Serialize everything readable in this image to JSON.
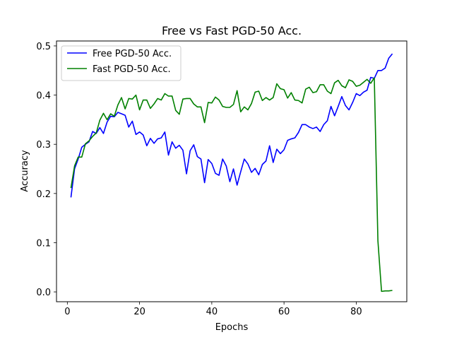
{
  "chart_data": {
    "type": "line",
    "title": "Free vs Fast PGD-50 Acc.",
    "xlabel": "Epochs",
    "ylabel": "Accuracy",
    "xlim": [
      -3,
      94
    ],
    "ylim": [
      -0.02,
      0.51
    ],
    "xticks": [
      0,
      20,
      40,
      60,
      80
    ],
    "yticks": [
      0.0,
      0.1,
      0.2,
      0.3,
      0.4,
      0.5
    ],
    "xtick_labels": [
      "0",
      "20",
      "40",
      "60",
      "80"
    ],
    "ytick_labels": [
      "0.0",
      "0.1",
      "0.2",
      "0.3",
      "0.4",
      "0.5"
    ],
    "legend_position": "top-left",
    "grid": false,
    "x": [
      1,
      2,
      3,
      4,
      5,
      6,
      7,
      8,
      9,
      10,
      11,
      12,
      13,
      14,
      15,
      16,
      17,
      18,
      19,
      20,
      21,
      22,
      23,
      24,
      25,
      26,
      27,
      28,
      29,
      30,
      31,
      32,
      33,
      34,
      35,
      36,
      37,
      38,
      39,
      40,
      41,
      42,
      43,
      44,
      45,
      46,
      47,
      48,
      49,
      50,
      51,
      52,
      53,
      54,
      55,
      56,
      57,
      58,
      59,
      60,
      61,
      62,
      63,
      64,
      65,
      66,
      67,
      68,
      69,
      70,
      71,
      72,
      73,
      74,
      75,
      76,
      77,
      78,
      79,
      80,
      81,
      82,
      83,
      84,
      85,
      86,
      87,
      88,
      89,
      90
    ],
    "series": [
      {
        "name": "Free PGD-50 Acc.",
        "color": "#0000ff",
        "values": [
          0.192,
          0.25,
          0.27,
          0.294,
          0.3,
          0.305,
          0.326,
          0.322,
          0.334,
          0.322,
          0.345,
          0.357,
          0.356,
          0.365,
          0.362,
          0.359,
          0.335,
          0.347,
          0.32,
          0.325,
          0.319,
          0.297,
          0.312,
          0.302,
          0.311,
          0.313,
          0.325,
          0.278,
          0.305,
          0.292,
          0.298,
          0.288,
          0.24,
          0.287,
          0.299,
          0.275,
          0.27,
          0.222,
          0.269,
          0.261,
          0.241,
          0.237,
          0.27,
          0.256,
          0.224,
          0.25,
          0.217,
          0.244,
          0.27,
          0.26,
          0.243,
          0.251,
          0.238,
          0.259,
          0.266,
          0.297,
          0.263,
          0.29,
          0.281,
          0.289,
          0.308,
          0.311,
          0.313,
          0.324,
          0.34,
          0.34,
          0.335,
          0.332,
          0.335,
          0.326,
          0.34,
          0.348,
          0.377,
          0.358,
          0.377,
          0.397,
          0.379,
          0.37,
          0.385,
          0.403,
          0.399,
          0.406,
          0.41,
          0.436,
          0.434,
          0.45,
          0.45,
          0.455,
          0.475,
          0.484
        ]
      },
      {
        "name": "Fast PGD-50 Acc.",
        "color": "#008000",
        "values": [
          0.211,
          0.256,
          0.274,
          0.274,
          0.301,
          0.307,
          0.316,
          0.323,
          0.349,
          0.363,
          0.35,
          0.362,
          0.357,
          0.38,
          0.395,
          0.372,
          0.393,
          0.392,
          0.4,
          0.37,
          0.39,
          0.39,
          0.373,
          0.382,
          0.393,
          0.39,
          0.403,
          0.398,
          0.398,
          0.369,
          0.361,
          0.392,
          0.393,
          0.393,
          0.382,
          0.376,
          0.376,
          0.344,
          0.385,
          0.384,
          0.396,
          0.39,
          0.377,
          0.375,
          0.375,
          0.381,
          0.409,
          0.366,
          0.376,
          0.37,
          0.383,
          0.406,
          0.408,
          0.389,
          0.395,
          0.39,
          0.395,
          0.423,
          0.413,
          0.411,
          0.394,
          0.405,
          0.39,
          0.389,
          0.384,
          0.412,
          0.416,
          0.405,
          0.407,
          0.421,
          0.421,
          0.408,
          0.403,
          0.425,
          0.43,
          0.419,
          0.415,
          0.431,
          0.428,
          0.418,
          0.42,
          0.426,
          0.432,
          0.424,
          0.435,
          0.104,
          0.001,
          0.002,
          0.002,
          0.003
        ]
      }
    ]
  }
}
